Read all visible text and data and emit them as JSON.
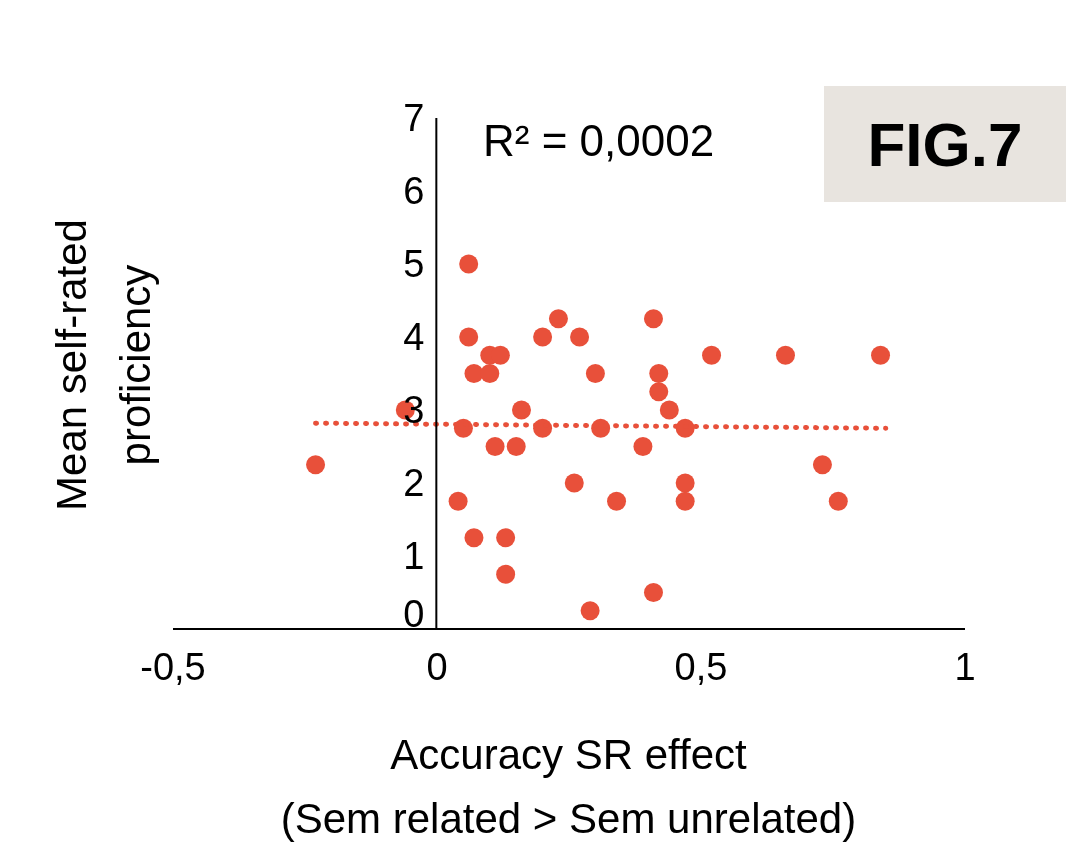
{
  "chart_data": {
    "type": "scatter",
    "xlabel": "Accuracy SR effect\n(Sem related > Sem unrelated)",
    "ylabel": "Mean self-rated\nproficiency",
    "annotations": [
      "R² = 0,0002",
      "FIG.7"
    ],
    "xlim": [
      -0.5,
      1
    ],
    "xticks": [
      {
        "value": -0.5,
        "label": "-0,5"
      },
      0,
      {
        "value": 0.5,
        "label": "0,5"
      },
      1
    ],
    "ylim": [
      0,
      7
    ],
    "yticks": [
      0,
      1,
      2,
      3,
      4,
      5,
      6,
      7
    ],
    "marker": "circle",
    "series": [
      {
        "type": "scatter",
        "color": "#e8503a",
        "x": [
          -0.23,
          -0.06,
          0.06,
          0.06,
          0.07,
          0.05,
          0.04,
          0.07,
          0.1,
          0.12,
          0.1,
          0.11,
          0.13,
          0.13,
          0.15,
          0.16,
          0.2,
          0.2,
          0.23,
          0.27,
          0.26,
          0.29,
          0.3,
          0.31,
          0.34,
          0.39,
          0.41,
          0.41,
          0.42,
          0.42,
          0.44,
          0.47,
          0.47,
          0.47,
          0.52,
          0.66,
          0.73,
          0.76,
          0.84
        ],
        "values": [
          2.25,
          3,
          5,
          4,
          3.5,
          2.75,
          1.75,
          1.25,
          3.75,
          3.75,
          3.5,
          2.5,
          1.25,
          0.75,
          2.5,
          3,
          2.75,
          4,
          4.25,
          4,
          2,
          0.25,
          3.5,
          2.75,
          1.75,
          2.5,
          4.25,
          0.5,
          3.5,
          3.25,
          3,
          2.75,
          2,
          1.75,
          3.75,
          3.75,
          2.25,
          1.75,
          3.75
        ]
      },
      {
        "type": "line",
        "color": "#e8503a",
        "line_style": "dotted",
        "marker": "none",
        "x": [
          -0.23,
          0.85
        ],
        "values": [
          2.82,
          2.75
        ]
      }
    ]
  }
}
